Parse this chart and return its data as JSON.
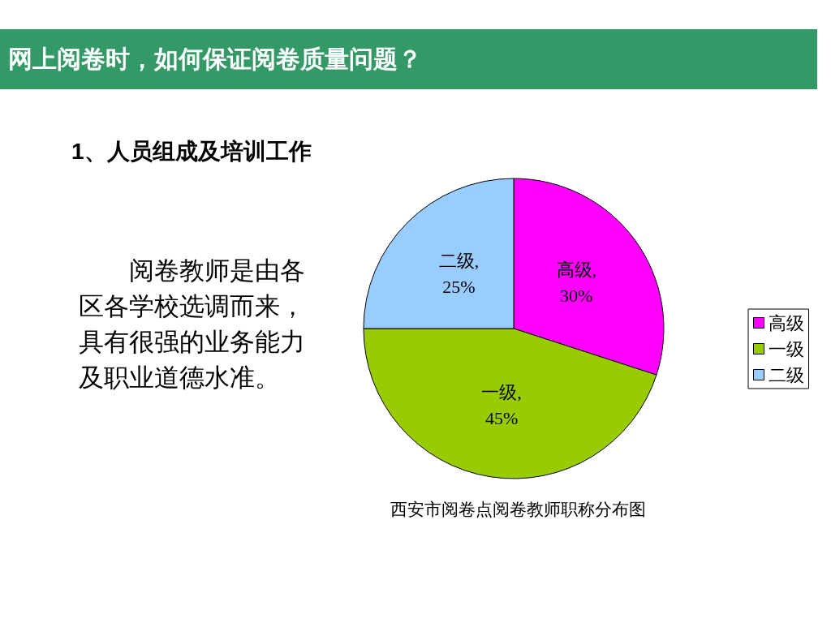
{
  "chart_data": {
    "type": "pie",
    "title": "网上阅卷时，如何保证阅卷质量问题？",
    "subtitle": "1、人员组成及培训工作",
    "annotations": [
      "阅卷教师是由各区各学校选调而来，具有很强的业务能力及职业道德水准。",
      "西安市阅卷点阅卷教师职称分布图"
    ],
    "categories": [
      "高级",
      "一级",
      "二级"
    ],
    "values": [
      30,
      45,
      25
    ],
    "colors": [
      "#ff00ff",
      "#99cc00",
      "#99ccff"
    ],
    "value_labels": [
      "高级, 30%",
      "一级, 45%",
      "二级, 25%"
    ],
    "legend": "right"
  }
}
